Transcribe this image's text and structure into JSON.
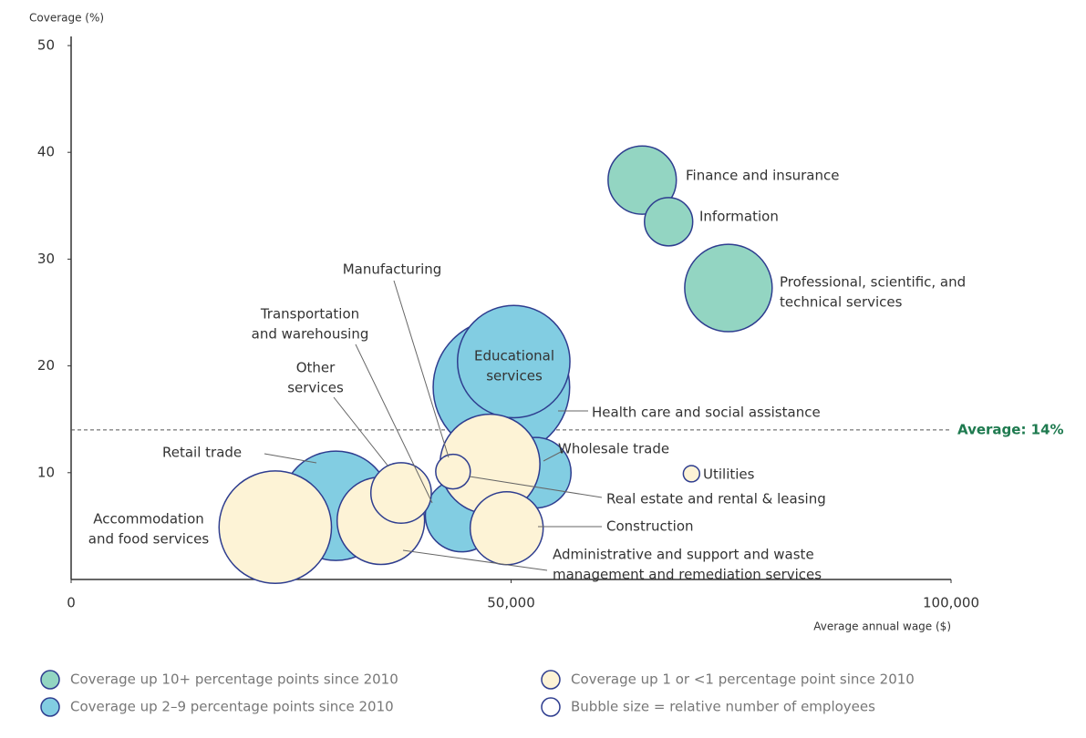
{
  "chart_data": {
    "type": "bubble",
    "y_label": "Coverage (%)",
    "x_label": "Average annual wage ($)",
    "xlim": [
      0,
      100000
    ],
    "ylim": [
      0,
      50
    ],
    "xticks": [
      0,
      {
        "value": 50000,
        "label": "50,000"
      },
      {
        "value": 100000,
        "label": "100,000"
      }
    ],
    "yticks": [
      10,
      20,
      30,
      40,
      50
    ],
    "average": {
      "value": 14,
      "label": "Average: 14%",
      "color": "#1e7a4f"
    },
    "size_note": "Bubble size = relative number of employees",
    "stroke": "#2e3d8f",
    "series": [
      {
        "name": "Coverage up 10+ percentage points since 2010",
        "color": "#93d5c2",
        "x": [
          64900,
          67900,
          74700
        ],
        "values": [
          37.4,
          33.5,
          27.3
        ],
        "sizes": [
          14,
          7,
          23
        ],
        "labels": [
          [
            "Finance and insurance"
          ],
          [
            "Information"
          ],
          [
            "Professional, scientific, and",
            "technical services"
          ]
        ]
      },
      {
        "name": "Coverage up 2–9 percentage points since 2010",
        "color": "#82cde2",
        "x": [
          48900,
          50300,
          52800,
          44400,
          30100
        ],
        "values": [
          18.0,
          20.4,
          10.0,
          6.0,
          6.9
        ],
        "sizes": [
          56,
          38,
          15,
          16,
          36
        ],
        "labels": [
          [
            "Health care and social assistance"
          ],
          [
            "Educational",
            "services"
          ],
          [
            "Wholesale trade"
          ],
          [
            "Transportation",
            "and warehousing"
          ],
          [
            "Retail trade"
          ]
        ]
      },
      {
        "name": "Coverage up 1 or <1 percentage point since 2010",
        "color": "#fdf3d6",
        "x": [
          47600,
          49500,
          35200,
          43400,
          37500,
          23200,
          70500
        ],
        "values": [
          10.8,
          4.8,
          5.5,
          10.1,
          8.1,
          4.9,
          9.9
        ],
        "sizes": [
          30,
          16,
          23,
          3.6,
          11,
          38,
          0.8
        ],
        "labels": [
          [
            "Manufacturing"
          ],
          [
            "Construction"
          ],
          [
            "Administrative and support and waste",
            "management and remediation services"
          ],
          [
            "Real estate and rental & leasing"
          ],
          [
            "Other",
            "services"
          ],
          [
            "Accommodation",
            "and food services"
          ],
          [
            "Utilities"
          ]
        ]
      }
    ]
  }
}
